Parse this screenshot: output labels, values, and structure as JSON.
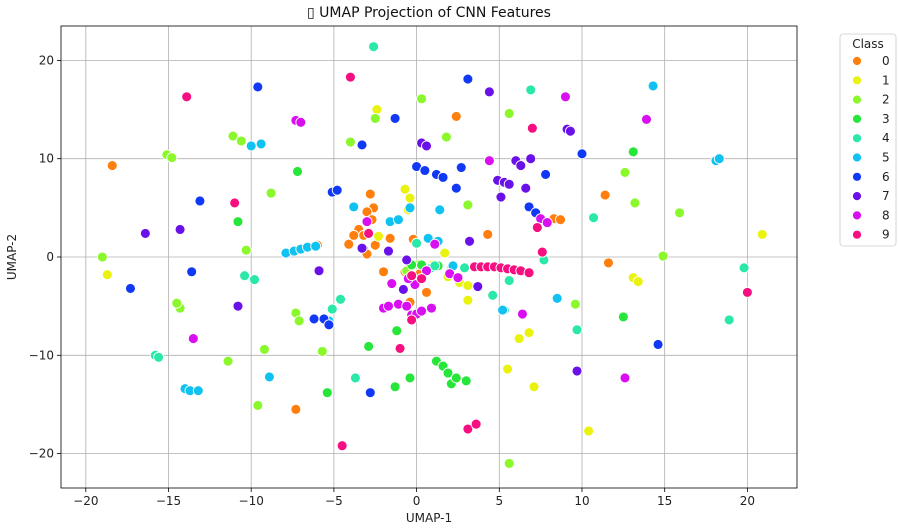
{
  "chart_data": {
    "type": "scatter",
    "title": "▯ UMAP Projection of CNN Features",
    "xlabel": "UMAP-1",
    "ylabel": "UMAP-2",
    "xlim": [
      -21.5,
      23
    ],
    "ylim": [
      -23.5,
      23.5
    ],
    "xticks": [
      -20,
      -15,
      -10,
      -5,
      0,
      5,
      10,
      15,
      20
    ],
    "yticks": [
      -20,
      -10,
      0,
      10,
      20
    ],
    "grid": true,
    "legend": {
      "title": "Class",
      "placement": "outside-top-right"
    },
    "series": [
      {
        "name": "0",
        "color": "#ff7f0e",
        "points": [
          [
            -18.4,
            9.3
          ],
          [
            -0.2,
            1.8
          ],
          [
            2.4,
            14.3
          ],
          [
            -2.8,
            6.4
          ],
          [
            -2.6,
            5.0
          ],
          [
            -3.0,
            4.6
          ],
          [
            -2.7,
            3.8
          ],
          [
            -3.5,
            2.8
          ],
          [
            -3.2,
            2.2
          ],
          [
            -4.1,
            1.3
          ],
          [
            -3.2,
            0.8
          ],
          [
            -2.5,
            1.2
          ],
          [
            -3.0,
            0.3
          ],
          [
            -2.0,
            -1.5
          ],
          [
            -0.7,
            -1.5
          ],
          [
            0.2,
            -1.7
          ],
          [
            0.6,
            -3.6
          ],
          [
            -0.4,
            -4.6
          ],
          [
            4.3,
            2.3
          ],
          [
            -6.0,
            1.2
          ],
          [
            8.3,
            3.9
          ],
          [
            8.7,
            3.8
          ],
          [
            11.4,
            6.3
          ],
          [
            11.6,
            -0.6
          ],
          [
            -7.3,
            -15.5
          ],
          [
            -1.6,
            1.9
          ],
          [
            -3.8,
            2.2
          ],
          [
            -2.9,
            2.5
          ]
        ]
      },
      {
        "name": "1",
        "color": "#eaf20f",
        "points": [
          [
            -18.7,
            -1.8
          ],
          [
            -2.4,
            15.0
          ],
          [
            -0.7,
            6.9
          ],
          [
            -0.4,
            6.0
          ],
          [
            -0.5,
            4.8
          ],
          [
            1.7,
            0.4
          ],
          [
            2.1,
            -1.1
          ],
          [
            1.9,
            -2.0
          ],
          [
            2.6,
            -2.6
          ],
          [
            3.1,
            -2.9
          ],
          [
            3.1,
            -4.4
          ],
          [
            5.5,
            -11.4
          ],
          [
            6.2,
            -8.3
          ],
          [
            6.8,
            -7.7
          ],
          [
            7.1,
            -13.2
          ],
          [
            13.1,
            -2.1
          ],
          [
            13.4,
            -2.5
          ],
          [
            20.9,
            2.3
          ],
          [
            10.4,
            -17.7
          ],
          [
            -2.3,
            2.1
          ],
          [
            1.0,
            -0.8
          ]
        ]
      },
      {
        "name": "2",
        "color": "#8af82a",
        "points": [
          [
            -19.0,
            0.0
          ],
          [
            -15.1,
            10.4
          ],
          [
            -14.8,
            10.1
          ],
          [
            -11.1,
            12.3
          ],
          [
            -10.6,
            11.8
          ],
          [
            -10.3,
            0.7
          ],
          [
            -8.8,
            6.5
          ],
          [
            -7.3,
            -5.7
          ],
          [
            -7.1,
            -6.5
          ],
          [
            -5.7,
            -9.6
          ],
          [
            -4.0,
            11.7
          ],
          [
            -2.5,
            14.1
          ],
          [
            0.3,
            16.1
          ],
          [
            1.8,
            12.2
          ],
          [
            3.1,
            5.3
          ],
          [
            0.2,
            -0.7
          ],
          [
            -0.6,
            -1.4
          ],
          [
            5.6,
            14.6
          ],
          [
            9.6,
            -4.8
          ],
          [
            12.6,
            8.6
          ],
          [
            13.2,
            5.5
          ],
          [
            14.9,
            0.1
          ],
          [
            15.9,
            4.5
          ],
          [
            5.6,
            -21.0
          ],
          [
            -11.4,
            -10.6
          ],
          [
            -9.6,
            -15.1
          ],
          [
            -9.2,
            -9.4
          ],
          [
            -14.3,
            -5.2
          ],
          [
            -14.5,
            -4.7
          ]
        ]
      },
      {
        "name": "3",
        "color": "#27e63a",
        "points": [
          [
            -10.8,
            3.6
          ],
          [
            -7.2,
            8.7
          ],
          [
            -5.4,
            -13.8
          ],
          [
            -2.9,
            -9.1
          ],
          [
            -1.3,
            -13.2
          ],
          [
            -0.4,
            -12.3
          ],
          [
            -0.3,
            -0.8
          ],
          [
            0.3,
            -0.8
          ],
          [
            1.2,
            -10.6
          ],
          [
            1.6,
            -11.1
          ],
          [
            1.9,
            -11.8
          ],
          [
            2.1,
            -12.9
          ],
          [
            2.4,
            -12.3
          ],
          [
            3.0,
            -12.6
          ],
          [
            1.3,
            -0.9
          ],
          [
            12.5,
            -6.1
          ],
          [
            13.1,
            10.7
          ],
          [
            -1.2,
            -7.5
          ]
        ]
      },
      {
        "name": "4",
        "color": "#2ae8a8",
        "points": [
          [
            -15.8,
            -10.0
          ],
          [
            -15.6,
            -10.2
          ],
          [
            -10.4,
            -1.9
          ],
          [
            -9.8,
            -2.3
          ],
          [
            -5.1,
            -5.3
          ],
          [
            -4.6,
            -4.3
          ],
          [
            -3.7,
            -12.3
          ],
          [
            -2.6,
            21.4
          ],
          [
            0.0,
            1.4
          ],
          [
            0.9,
            -1.1
          ],
          [
            1.1,
            -0.9
          ],
          [
            2.9,
            -1.1
          ],
          [
            4.6,
            -3.9
          ],
          [
            5.3,
            -5.4
          ],
          [
            5.6,
            -2.4
          ],
          [
            6.9,
            17.0
          ],
          [
            7.7,
            -0.3
          ],
          [
            9.7,
            -7.4
          ],
          [
            10.7,
            4.0
          ],
          [
            18.9,
            -6.4
          ],
          [
            19.8,
            -1.1
          ]
        ]
      },
      {
        "name": "5",
        "color": "#10c2f0",
        "points": [
          [
            -14.0,
            -13.4
          ],
          [
            -13.7,
            -13.6
          ],
          [
            -13.2,
            -13.6
          ],
          [
            -10.0,
            11.3
          ],
          [
            -9.4,
            11.5
          ],
          [
            -8.9,
            -12.2
          ],
          [
            -7.9,
            0.4
          ],
          [
            -7.4,
            0.6
          ],
          [
            -7.0,
            0.8
          ],
          [
            -6.6,
            1.0
          ],
          [
            -6.1,
            1.1
          ],
          [
            -3.8,
            5.1
          ],
          [
            -1.6,
            3.6
          ],
          [
            -1.1,
            3.8
          ],
          [
            -0.4,
            5.0
          ],
          [
            0.7,
            1.9
          ],
          [
            1.4,
            4.8
          ],
          [
            1.3,
            1.6
          ],
          [
            2.2,
            -0.9
          ],
          [
            5.2,
            -5.4
          ],
          [
            8.5,
            -4.2
          ],
          [
            14.3,
            17.4
          ],
          [
            18.1,
            9.8
          ],
          [
            18.3,
            10.0
          ],
          [
            -5.3,
            -6.5
          ]
        ]
      },
      {
        "name": "6",
        "color": "#1038f5",
        "points": [
          [
            -17.3,
            -3.2
          ],
          [
            -13.6,
            -1.5
          ],
          [
            -13.1,
            5.7
          ],
          [
            -9.6,
            17.3
          ],
          [
            -5.1,
            6.6
          ],
          [
            -4.8,
            6.8
          ],
          [
            -5.6,
            -6.3
          ],
          [
            -5.3,
            -6.9
          ],
          [
            -3.3,
            11.4
          ],
          [
            -2.8,
            -13.8
          ],
          [
            -1.3,
            14.1
          ],
          [
            0.0,
            9.2
          ],
          [
            0.5,
            8.8
          ],
          [
            1.2,
            8.4
          ],
          [
            1.6,
            8.1
          ],
          [
            2.4,
            7.0
          ],
          [
            2.7,
            9.1
          ],
          [
            3.1,
            18.1
          ],
          [
            6.8,
            5.1
          ],
          [
            7.2,
            4.5
          ],
          [
            7.8,
            8.4
          ],
          [
            10.0,
            10.5
          ],
          [
            14.6,
            -8.9
          ],
          [
            -6.2,
            -6.3
          ]
        ]
      },
      {
        "name": "7",
        "color": "#6a10e8",
        "points": [
          [
            -16.4,
            2.4
          ],
          [
            -14.3,
            2.8
          ],
          [
            -10.8,
            -5.0
          ],
          [
            -5.9,
            -1.4
          ],
          [
            -3.3,
            0.9
          ],
          [
            -1.7,
            0.6
          ],
          [
            -0.6,
            -0.3
          ],
          [
            0.3,
            11.6
          ],
          [
            0.6,
            11.3
          ],
          [
            3.2,
            1.6
          ],
          [
            4.4,
            16.8
          ],
          [
            4.9,
            7.8
          ],
          [
            5.3,
            7.6
          ],
          [
            5.6,
            7.4
          ],
          [
            5.1,
            6.1
          ],
          [
            6.0,
            9.8
          ],
          [
            6.3,
            9.3
          ],
          [
            6.6,
            7.0
          ],
          [
            6.9,
            10.0
          ],
          [
            9.1,
            13.0
          ],
          [
            9.3,
            12.8
          ],
          [
            9.7,
            -11.6
          ],
          [
            -0.8,
            -3.3
          ],
          [
            3.7,
            -3.0
          ]
        ]
      },
      {
        "name": "8",
        "color": "#d80ff0",
        "points": [
          [
            -7.3,
            13.9
          ],
          [
            -7.0,
            13.7
          ],
          [
            -3.0,
            3.6
          ],
          [
            -2.0,
            -5.2
          ],
          [
            -1.7,
            -5.0
          ],
          [
            -1.1,
            -4.8
          ],
          [
            -0.6,
            -5.0
          ],
          [
            -0.3,
            -5.9
          ],
          [
            -0.0,
            -5.8
          ],
          [
            0.3,
            -5.5
          ],
          [
            0.9,
            -5.2
          ],
          [
            -0.1,
            -2.8
          ],
          [
            -0.5,
            -2.2
          ],
          [
            0.6,
            -1.4
          ],
          [
            1.1,
            1.3
          ],
          [
            2.0,
            -1.7
          ],
          [
            2.5,
            -2.1
          ],
          [
            4.4,
            9.8
          ],
          [
            6.4,
            -5.8
          ],
          [
            7.5,
            3.9
          ],
          [
            7.9,
            3.5
          ],
          [
            9.0,
            16.3
          ],
          [
            12.6,
            -12.3
          ],
          [
            13.9,
            14.0
          ],
          [
            -13.5,
            -8.3
          ],
          [
            -1.5,
            -2.7
          ]
        ]
      },
      {
        "name": "9",
        "color": "#f50f80",
        "points": [
          [
            -13.9,
            16.3
          ],
          [
            -11.0,
            5.5
          ],
          [
            -4.0,
            18.3
          ],
          [
            -4.5,
            -19.2
          ],
          [
            -1.0,
            -9.3
          ],
          [
            -0.3,
            -6.4
          ],
          [
            -0.3,
            -1.9
          ],
          [
            0.3,
            -2.2
          ],
          [
            3.5,
            -1.0
          ],
          [
            3.9,
            -1.0
          ],
          [
            4.3,
            -1.0
          ],
          [
            4.7,
            -1.0
          ],
          [
            5.1,
            -1.1
          ],
          [
            5.5,
            -1.2
          ],
          [
            5.9,
            -1.3
          ],
          [
            6.3,
            -1.4
          ],
          [
            6.8,
            -1.6
          ],
          [
            7.0,
            13.1
          ],
          [
            7.3,
            3.0
          ],
          [
            7.6,
            0.5
          ],
          [
            3.1,
            -17.5
          ],
          [
            3.6,
            -17.0
          ],
          [
            20.0,
            -3.6
          ],
          [
            -2.9,
            2.4
          ]
        ]
      }
    ]
  }
}
